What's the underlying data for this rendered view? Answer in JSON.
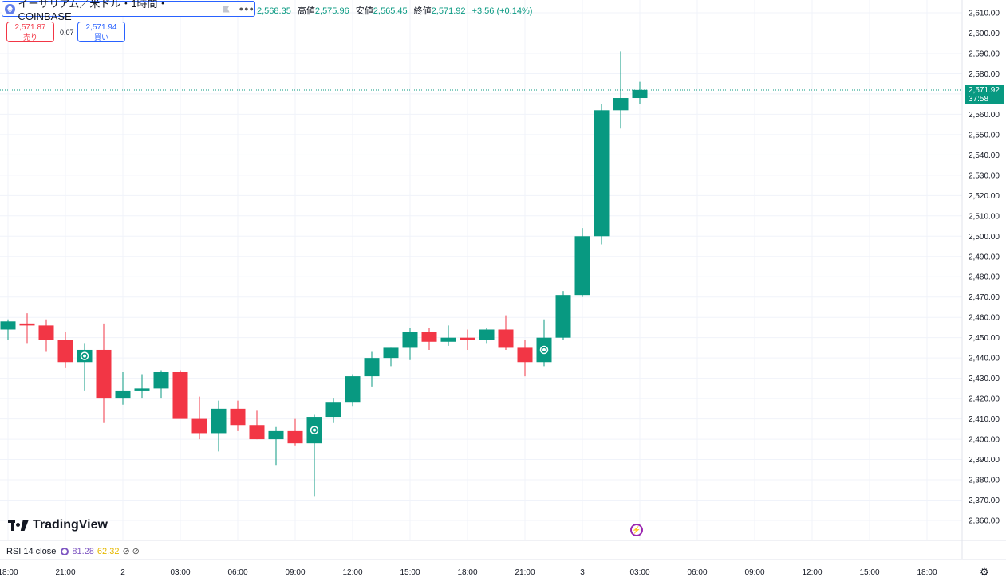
{
  "header": {
    "symbol_title": "イーサリアム／米ドル・1時間・COINBASE",
    "ohlc": [
      {
        "label": "",
        "value": "2,568.35"
      },
      {
        "label": "高値",
        "value": "2,575.96"
      },
      {
        "label": "安値",
        "value": "2,565.45"
      },
      {
        "label": "終値",
        "value": "2,571.92"
      },
      {
        "label": "",
        "value": "+3.56 (+0.14%)"
      }
    ]
  },
  "trade": {
    "sell_price": "2,571.87",
    "sell_label": "売り",
    "spread": "0.07",
    "buy_price": "2,571.94",
    "buy_label": "買い"
  },
  "price_tag": {
    "price": "2,571.92",
    "countdown": "37:58"
  },
  "watermark": "TradingView",
  "rsi": {
    "label": "RSI 14 close",
    "value1": "81.28",
    "value2": "62.32"
  },
  "colors": {
    "up": "#089981",
    "down": "#f23645",
    "grid": "#f0f3fa",
    "accent": "#2962ff"
  },
  "chart_data": {
    "type": "candlestick",
    "y_axis_ticks": [
      2360,
      2370,
      2380,
      2390,
      2400,
      2410,
      2420,
      2430,
      2440,
      2450,
      2460,
      2470,
      2480,
      2490,
      2500,
      2510,
      2520,
      2530,
      2540,
      2550,
      2560,
      2570,
      2580,
      2590,
      2600,
      2610
    ],
    "x_axis_labels": [
      "18:00",
      "21:00",
      "2",
      "03:00",
      "06:00",
      "09:00",
      "12:00",
      "15:00",
      "18:00",
      "21:00",
      "3",
      "03:00",
      "06:00",
      "09:00",
      "12:00",
      "15:00",
      "18:00"
    ],
    "ylim": [
      2355,
      2615
    ],
    "last_price": 2571.92,
    "candles": [
      {
        "o": 2454,
        "h": 2459,
        "l": 2449,
        "c": 2458
      },
      {
        "o": 2457,
        "h": 2462,
        "l": 2447,
        "c": 2456
      },
      {
        "o": 2456,
        "h": 2459,
        "l": 2443,
        "c": 2449
      },
      {
        "o": 2449,
        "h": 2453,
        "l": 2435,
        "c": 2438
      },
      {
        "o": 2438,
        "h": 2447,
        "l": 2424,
        "c": 2444
      },
      {
        "o": 2444,
        "h": 2457,
        "l": 2408,
        "c": 2420
      },
      {
        "o": 2420,
        "h": 2433,
        "l": 2417,
        "c": 2424
      },
      {
        "o": 2424,
        "h": 2432,
        "l": 2420,
        "c": 2425
      },
      {
        "o": 2425,
        "h": 2434,
        "l": 2420,
        "c": 2433
      },
      {
        "o": 2433,
        "h": 2434,
        "l": 2411,
        "c": 2410
      },
      {
        "o": 2410,
        "h": 2421,
        "l": 2400,
        "c": 2403
      },
      {
        "o": 2403,
        "h": 2419,
        "l": 2394,
        "c": 2415
      },
      {
        "o": 2415,
        "h": 2419,
        "l": 2404,
        "c": 2407
      },
      {
        "o": 2407,
        "h": 2414,
        "l": 2400,
        "c": 2400
      },
      {
        "o": 2400,
        "h": 2406,
        "l": 2387,
        "c": 2404
      },
      {
        "o": 2404,
        "h": 2410,
        "l": 2397,
        "c": 2398
      },
      {
        "o": 2398,
        "h": 2412,
        "l": 2372,
        "c": 2411
      },
      {
        "o": 2411,
        "h": 2420,
        "l": 2408,
        "c": 2418
      },
      {
        "o": 2418,
        "h": 2432,
        "l": 2416,
        "c": 2431
      },
      {
        "o": 2431,
        "h": 2443,
        "l": 2426,
        "c": 2440
      },
      {
        "o": 2440,
        "h": 2445,
        "l": 2436,
        "c": 2445
      },
      {
        "o": 2445,
        "h": 2455,
        "l": 2439,
        "c": 2453
      },
      {
        "o": 2453,
        "h": 2455,
        "l": 2444,
        "c": 2448
      },
      {
        "o": 2448,
        "h": 2456,
        "l": 2446,
        "c": 2450
      },
      {
        "o": 2450,
        "h": 2454,
        "l": 2444,
        "c": 2449
      },
      {
        "o": 2449,
        "h": 2455,
        "l": 2447,
        "c": 2454
      },
      {
        "o": 2454,
        "h": 2461,
        "l": 2444,
        "c": 2445
      },
      {
        "o": 2445,
        "h": 2449,
        "l": 2431,
        "c": 2438
      },
      {
        "o": 2438,
        "h": 2459,
        "l": 2436,
        "c": 2450
      },
      {
        "o": 2450,
        "h": 2473,
        "l": 2449,
        "c": 2471
      },
      {
        "o": 2471,
        "h": 2504,
        "l": 2470,
        "c": 2500
      },
      {
        "o": 2500,
        "h": 2565,
        "l": 2496,
        "c": 2562
      },
      {
        "o": 2562,
        "h": 2591,
        "l": 2553,
        "c": 2568
      },
      {
        "o": 2568,
        "h": 2576,
        "l": 2565,
        "c": 2572
      }
    ]
  }
}
